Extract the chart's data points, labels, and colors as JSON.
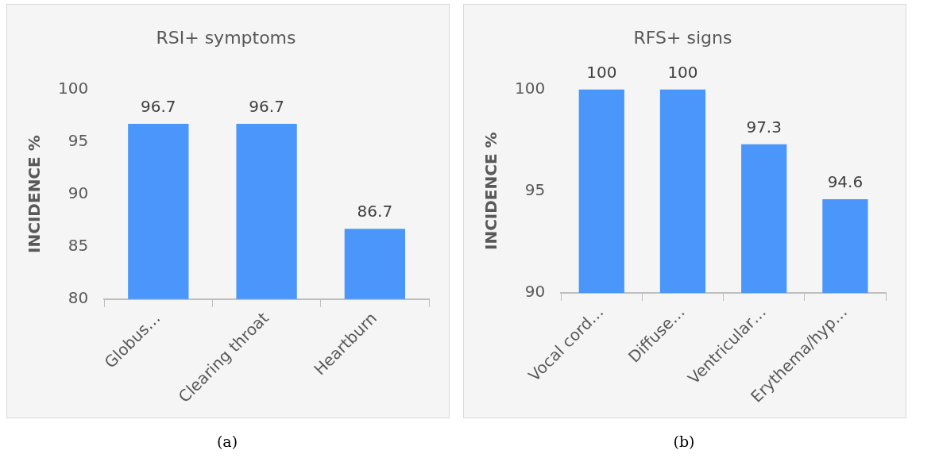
{
  "chart_data": [
    {
      "type": "bar",
      "title": "RSI+ symptoms",
      "ylabel": "INCIDENCE %",
      "categories": [
        "Globus…",
        "Clearing throat",
        "Heartburn"
      ],
      "values": [
        96.7,
        96.7,
        86.7
      ],
      "color": "#4a96fa",
      "ylim": [
        80,
        100
      ],
      "yticks": [
        80,
        85,
        90,
        95,
        100
      ],
      "data_labels": true,
      "annotations": [
        "(a)"
      ]
    },
    {
      "type": "bar",
      "title": "RFS+ signs",
      "ylabel": "INCIDENCE %",
      "categories": [
        "Vocal cord…",
        "Diffuse…",
        "Ventricular…",
        "Erythema/hyp…"
      ],
      "values": [
        100,
        100,
        97.3,
        94.6
      ],
      "color": "#4a96fa",
      "ylim": [
        90,
        100
      ],
      "yticks": [
        90,
        95,
        100
      ],
      "data_labels": true,
      "annotations": [
        "(b)"
      ]
    }
  ]
}
